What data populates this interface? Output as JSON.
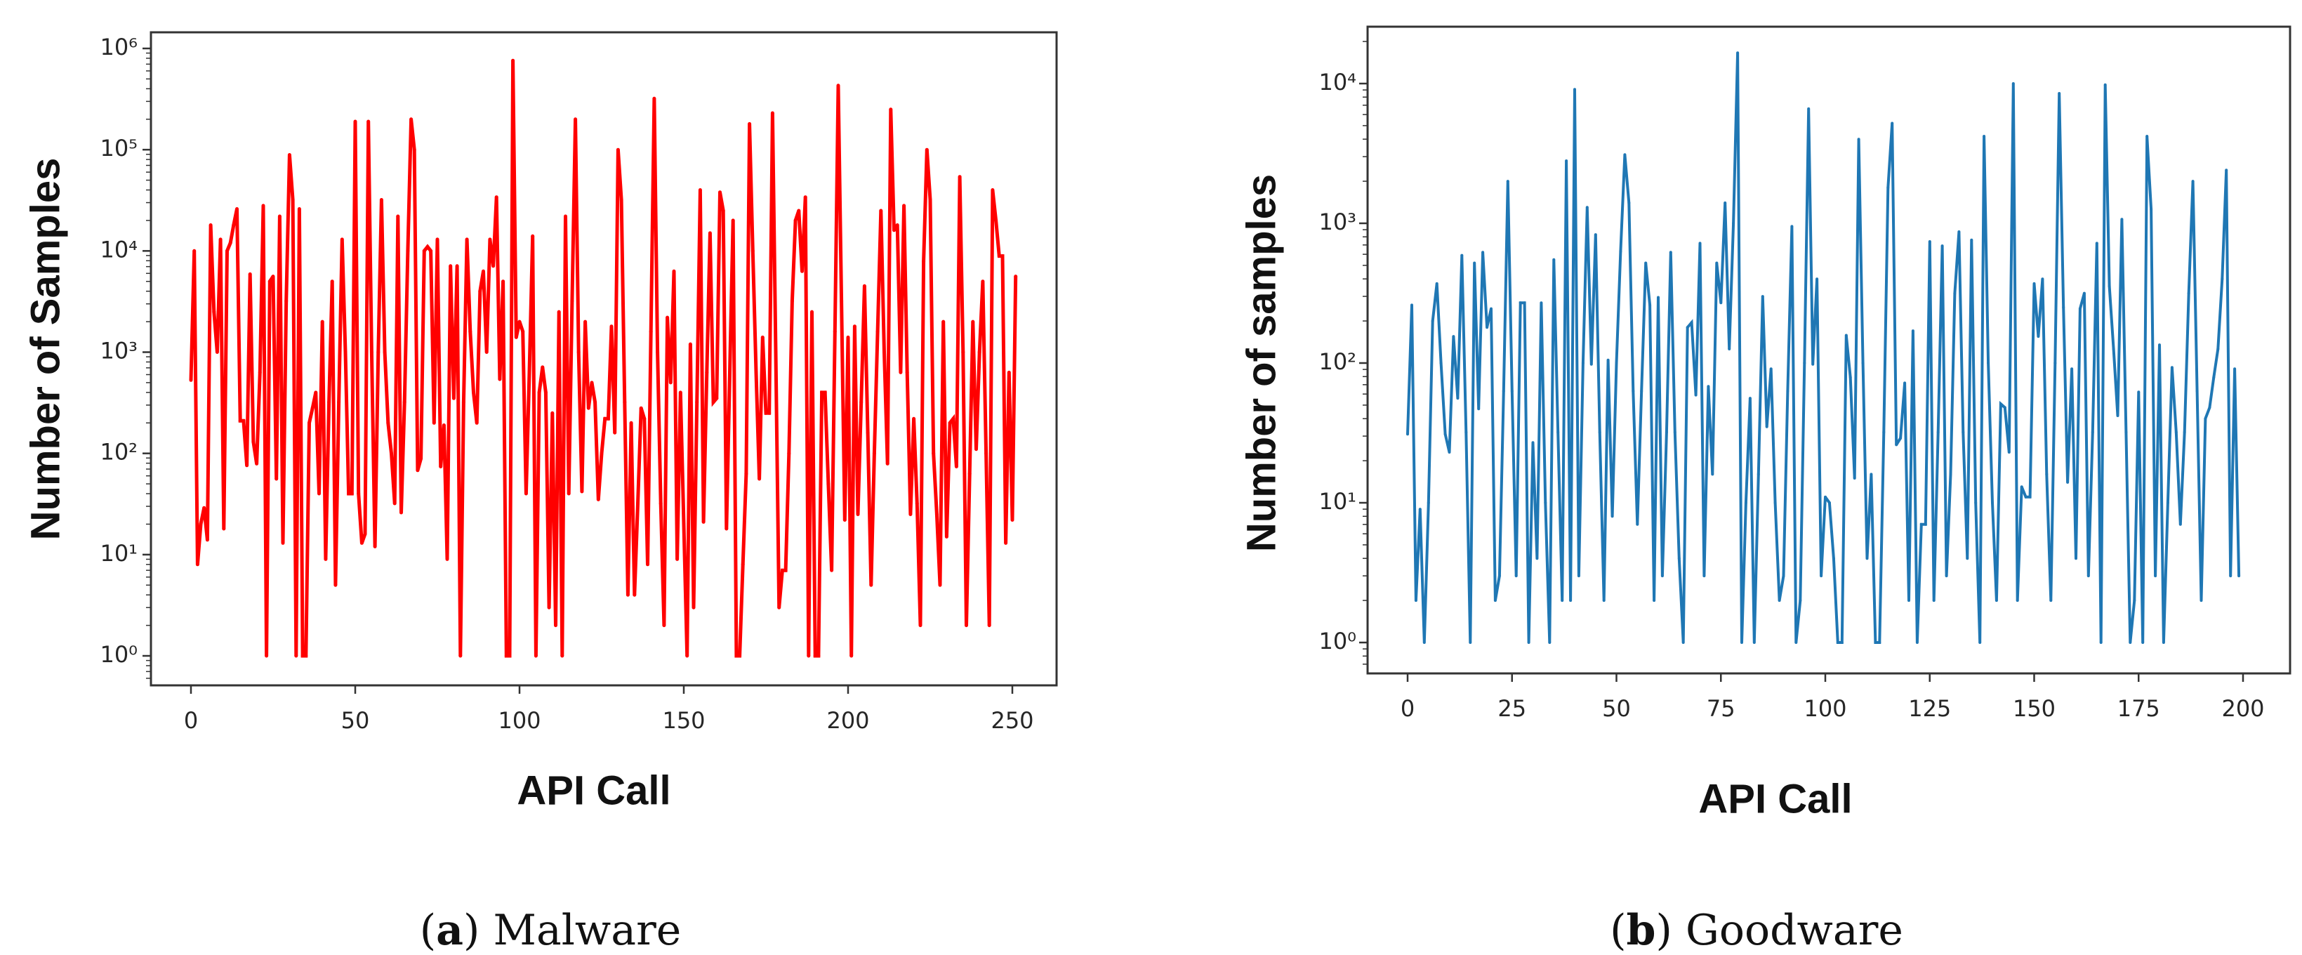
{
  "chart_data": [
    {
      "type": "line",
      "title": "",
      "caption": {
        "label": "a",
        "text": "Malware"
      },
      "xlabel": "API Call",
      "ylabel": "Number of Samples",
      "yscale": "log",
      "xlim": [
        -12,
        262
      ],
      "ylim": [
        0.5,
        1400000
      ],
      "xticks": [
        0,
        50,
        100,
        150,
        200,
        250
      ],
      "xtick_labels": [
        "0",
        "50",
        "100",
        "150",
        "200",
        "250"
      ],
      "yticks": [
        1,
        10,
        100,
        1000,
        10000,
        100000,
        1000000
      ],
      "ytick_labels": [
        "10⁰",
        "10¹",
        "10²",
        "10³",
        "10⁴",
        "10⁵",
        "10⁶"
      ],
      "grid": false,
      "color": "#ff0000",
      "series": [
        {
          "values": [
            530,
            10000,
            8,
            20,
            29,
            14,
            18000,
            2500,
            1000,
            13000,
            18,
            10000,
            12000,
            18000,
            26000,
            210,
            210,
            76,
            5900,
            130,
            79,
            630,
            28000,
            1,
            5000,
            5600,
            56,
            22000,
            13,
            3200,
            89000,
            32000,
            1,
            26000,
            1,
            1,
            200,
            280,
            400,
            40,
            2000,
            9,
            320,
            5000,
            5,
            320,
            13000,
            1000,
            40,
            40,
            190000,
            40,
            13,
            16,
            190000,
            1000,
            12,
            1000,
            32000,
            1000,
            200,
            100,
            32,
            22000,
            26,
            320,
            10000,
            200000,
            100000,
            68,
            89,
            10000,
            11000,
            10000,
            200,
            13000,
            74,
            190,
            9,
            7100,
            350,
            7100,
            1,
            320,
            13000,
            1600,
            400,
            200,
            4000,
            6300,
            1000,
            13000,
            7100,
            34000,
            540,
            5000,
            1,
            1,
            760000,
            1400,
            2000,
            1600,
            40,
            630,
            14000,
            1,
            400,
            710,
            400,
            3,
            250,
            2,
            2500,
            1,
            22000,
            40,
            3200,
            200000,
            1000,
            42,
            2000,
            280,
            500,
            320,
            35,
            100,
            220,
            220,
            1800,
            160,
            100000,
            32000,
            320,
            4,
            200,
            4,
            32,
            280,
            220,
            8,
            1600,
            320000,
            1000,
            32,
            2,
            2200,
            500,
            6300,
            9,
            400,
            20,
            1,
            1200,
            3,
            320,
            40000,
            21,
            630,
            15000,
            320,
            350,
            38000,
            25000,
            18,
            630,
            20000,
            1,
            1,
            8,
            63,
            180000,
            10000,
            630,
            56,
            1400,
            250,
            250,
            230000,
            1000,
            3,
            7,
            7,
            100,
            3200,
            20000,
            25000,
            6300,
            34000,
            1,
            2500,
            1,
            1,
            400,
            400,
            50,
            7,
            1600,
            430000,
            3200,
            22,
            1400,
            1,
            1800,
            25,
            320,
            4500,
            160,
            5,
            100,
            1600,
            25000,
            1000,
            79,
            250000,
            16000,
            18000,
            630,
            28000,
            630,
            25,
            220,
            32,
            2,
            7900,
            100000,
            32000,
            100,
            25,
            5,
            2000,
            15,
            200,
            220,
            74,
            54000,
            1000,
            2,
            63,
            2000,
            110,
            1000,
            5000,
            100,
            2,
            40000,
            20000,
            8900,
            8900,
            13,
            630,
            22,
            5600
          ]
        }
      ]
    },
    {
      "type": "line",
      "title": "",
      "caption": {
        "label": "b",
        "text": "Goodware"
      },
      "xlabel": "API Call",
      "ylabel": "Number of samples",
      "yscale": "log",
      "xlim": [
        -10,
        211
      ],
      "ylim": [
        0.6,
        26000
      ],
      "xticks": [
        0,
        25,
        50,
        75,
        100,
        125,
        150,
        175,
        200
      ],
      "xtick_labels": [
        "0",
        "25",
        "50",
        "75",
        "100",
        "125",
        "150",
        "175",
        "200"
      ],
      "yticks": [
        1,
        10,
        100,
        1000,
        10000
      ],
      "ytick_labels": [
        "10⁰",
        "10¹",
        "10²",
        "10³",
        "10⁴"
      ],
      "grid": false,
      "color": "#1f77b4",
      "series": [
        {
          "values": [
            31,
            260,
            2,
            9,
            1,
            10,
            200,
            370,
            100,
            31,
            23,
            155,
            56,
            590,
            32,
            1,
            520,
            47,
            620,
            180,
            245,
            2,
            3,
            63,
            2000,
            63,
            3,
            270,
            270,
            1,
            27,
            4,
            270,
            10,
            1,
            550,
            32,
            2,
            2800,
            2,
            9100,
            3,
            100,
            1300,
            98,
            830,
            32,
            2,
            105,
            8,
            100,
            630,
            3100,
            1400,
            63,
            7,
            63,
            520,
            260,
            2,
            295,
            3,
            32,
            620,
            32,
            4,
            1,
            180,
            195,
            59,
            720,
            3,
            68,
            16,
            520,
            270,
            1400,
            126,
            1000,
            16600,
            1,
            10,
            56,
            1,
            16,
            300,
            35,
            91,
            10,
            2,
            3,
            63,
            950,
            1,
            2,
            100,
            6600,
            98,
            400,
            3,
            11,
            10,
            4,
            1,
            1,
            158,
            79,
            15,
            4000,
            100,
            4,
            16,
            1,
            1,
            32,
            1800,
            5200,
            26,
            29,
            72,
            2,
            170,
            1,
            7,
            7,
            740,
            2,
            32,
            690,
            3,
            16,
            316,
            870,
            32,
            4,
            760,
            10,
            1,
            4200,
            100,
            10,
            2,
            51,
            48,
            23,
            10000,
            2,
            13,
            11,
            11,
            370,
            155,
            400,
            16,
            2,
            100,
            8500,
            250,
            14,
            91,
            4,
            245,
            316,
            3,
            32,
            720,
            1,
            9800,
            355,
            126,
            42,
            1070,
            32,
            1,
            2,
            62,
            1,
            4200,
            1260,
            3,
            135,
            1,
            10,
            93,
            32,
            7,
            32,
            316,
            2000,
            63,
            2,
            40,
            48,
            79,
            126,
            400,
            2400,
            3,
            91,
            3
          ]
        }
      ]
    }
  ]
}
